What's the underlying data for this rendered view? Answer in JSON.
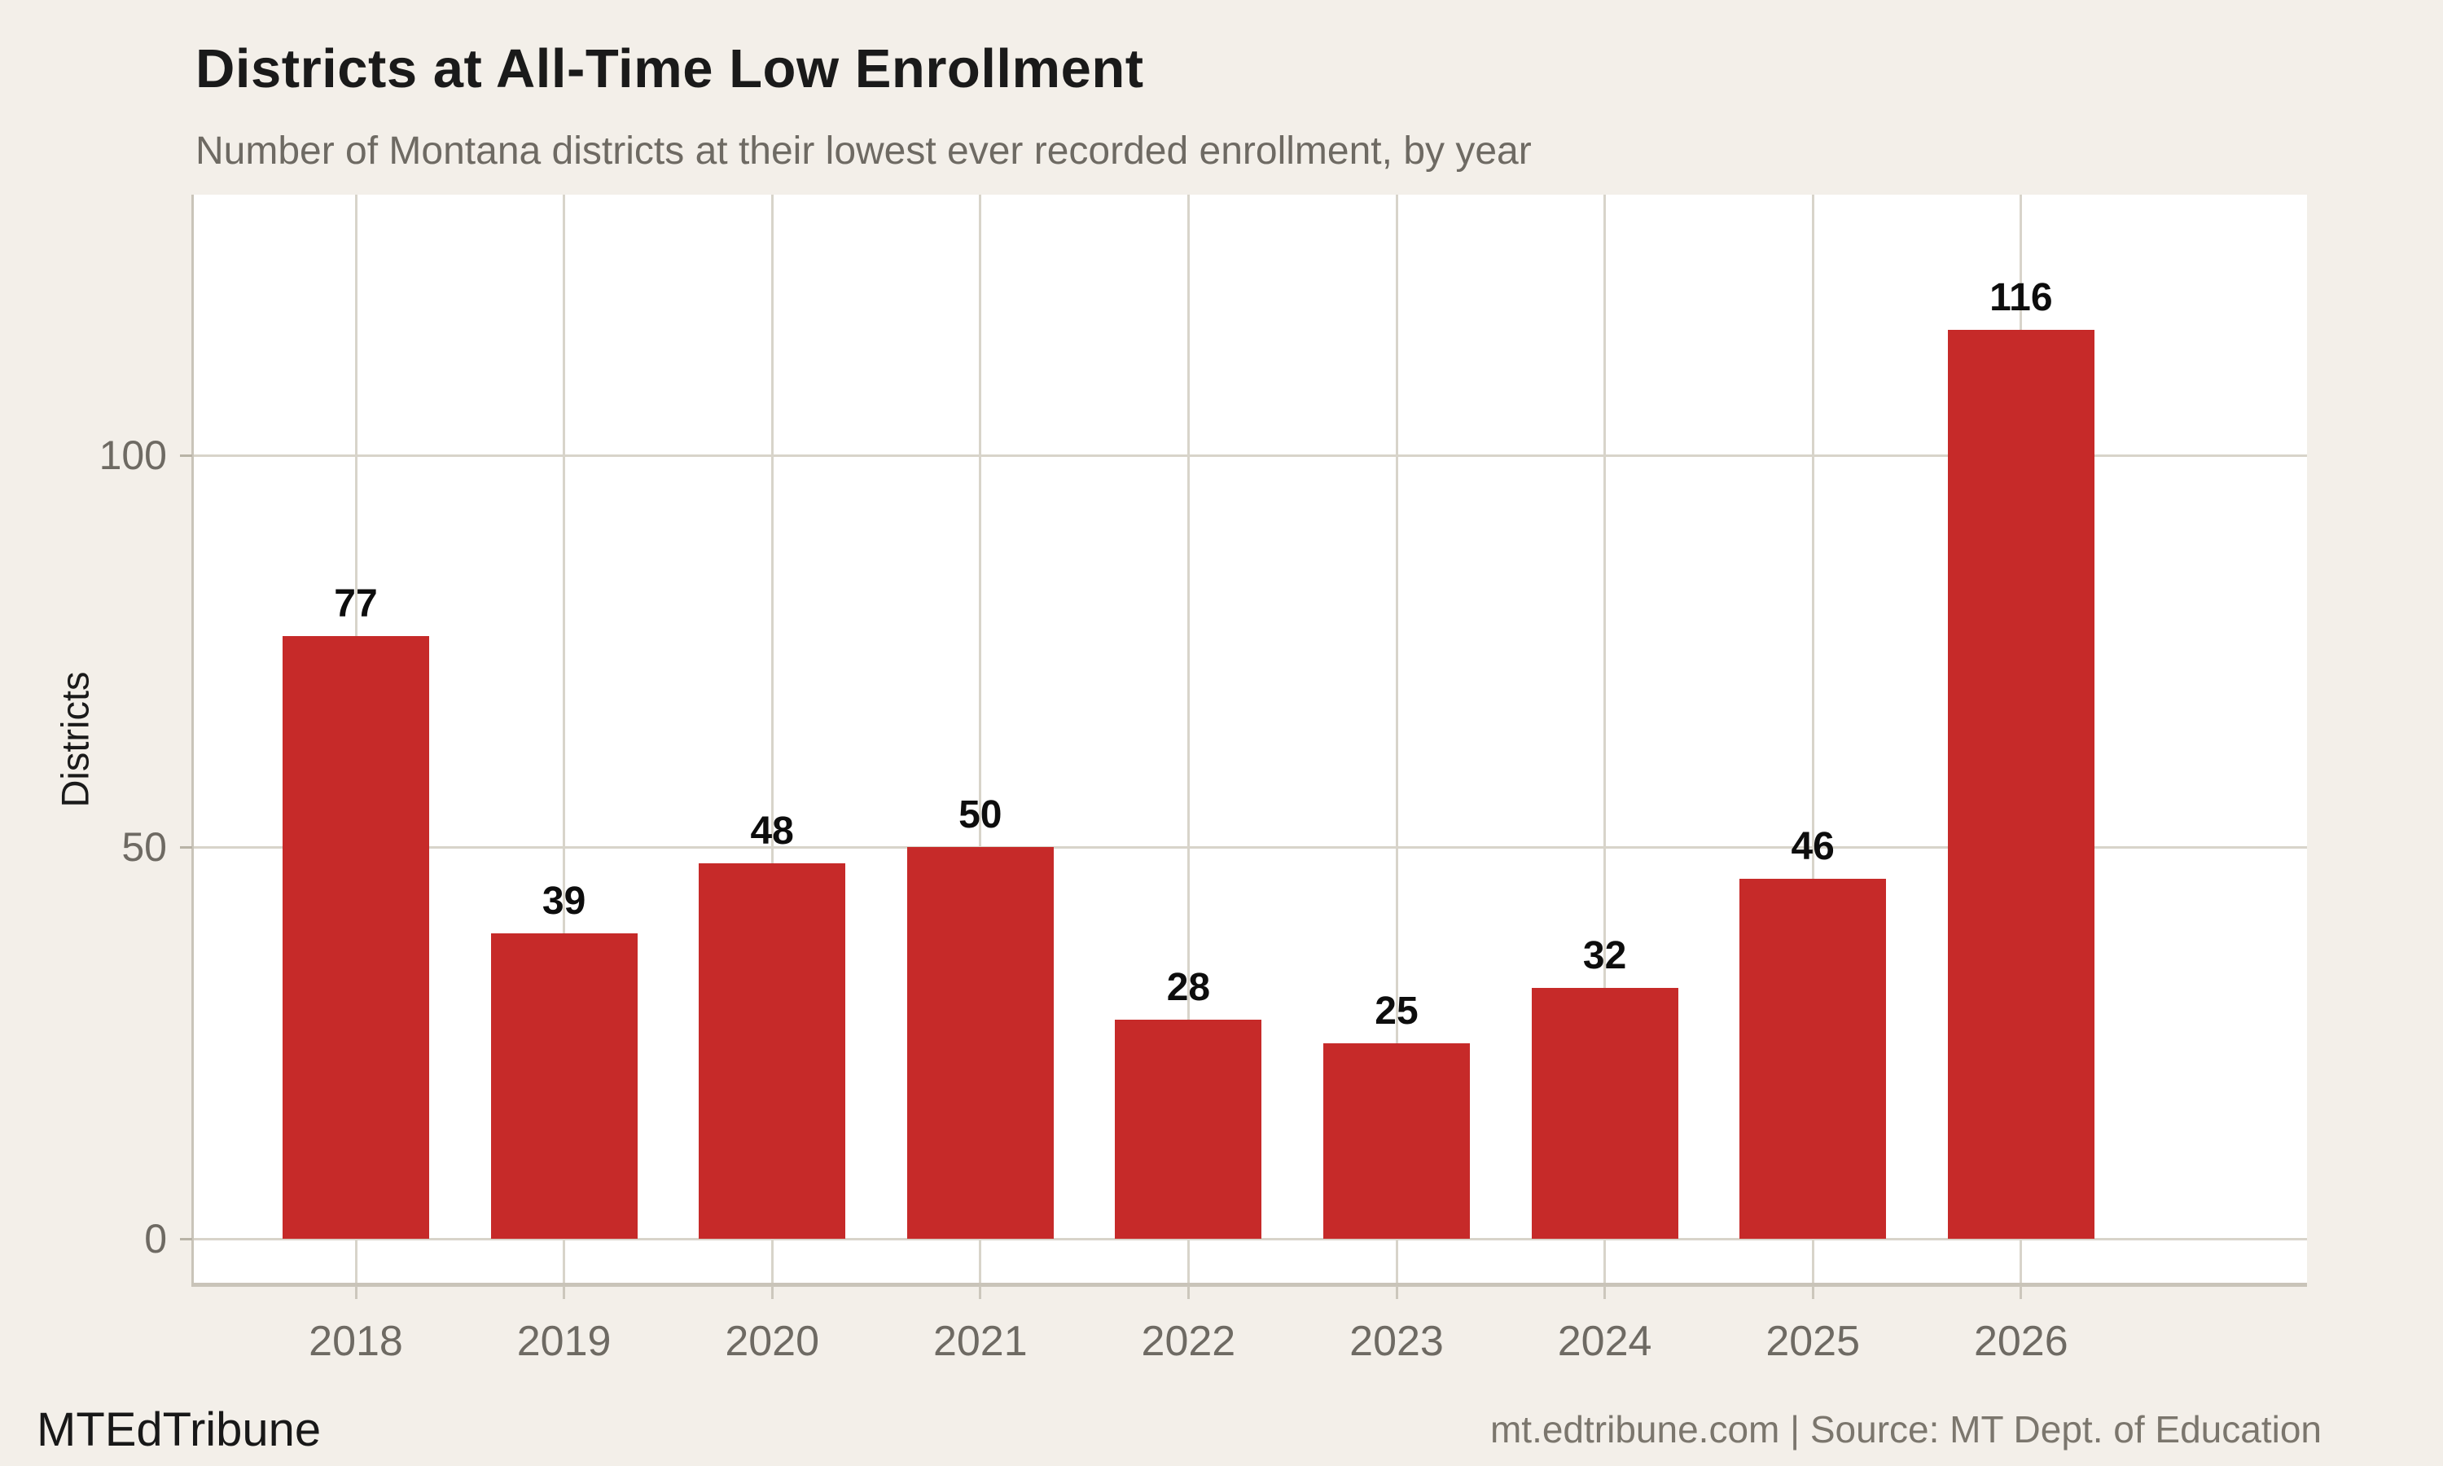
{
  "title": "Districts at All-Time Low Enrollment",
  "subtitle": "Number of Montana districts at their lowest ever recorded enrollment, by year",
  "footer": {
    "brand": "MTEdTribune",
    "source": "mt.edtribune.com | Source: MT Dept. of Education"
  },
  "chart_data": {
    "type": "bar",
    "categories": [
      "2018",
      "2019",
      "2020",
      "2021",
      "2022",
      "2023",
      "2024",
      "2025",
      "2026"
    ],
    "values": [
      77,
      39,
      48,
      50,
      28,
      25,
      32,
      46,
      116
    ],
    "title": "Districts at All-Time Low Enrollment",
    "subtitle": "Number of Montana districts at their lowest ever recorded enrollment, by year",
    "xlabel": "",
    "ylabel": "Districts",
    "yticks": [
      0,
      50,
      100
    ],
    "ylim": [
      -5.8,
      133.3
    ],
    "grid": true,
    "legend_position": "none",
    "value_labels_shown": true
  },
  "colors": {
    "background": "#f3efe9",
    "panel": "#ffffff",
    "bar": "#c62a29",
    "grid": "#d8d4ca",
    "axis_line": "#c9c4b9",
    "tick": "#b8b3a6",
    "title_text": "#1a1a1a",
    "muted_text": "#6e6a63",
    "value_label_text": "#0d0d0d",
    "footer_text": "#7b766d"
  }
}
